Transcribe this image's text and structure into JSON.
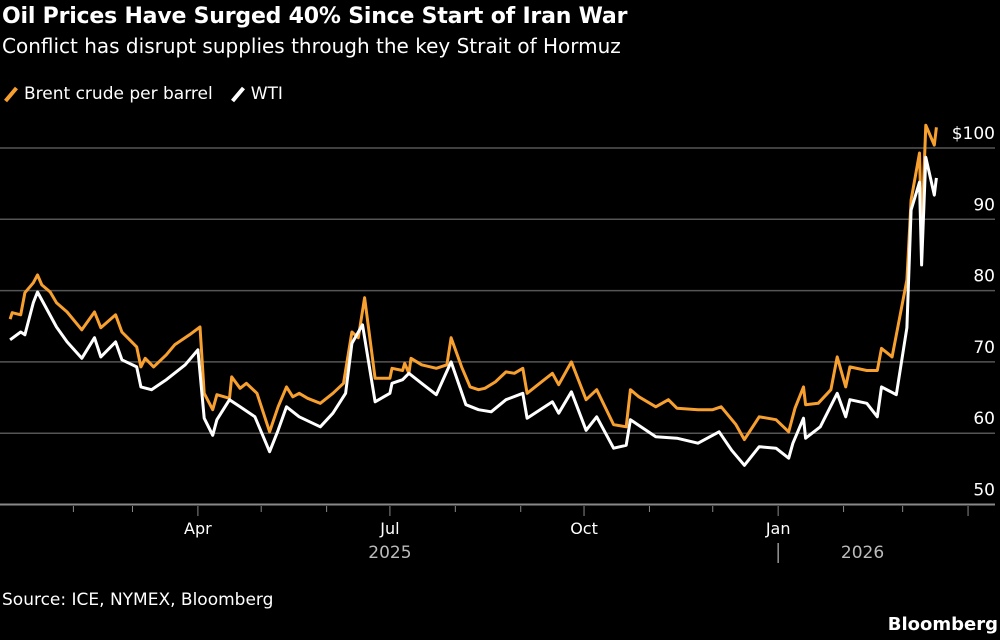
{
  "header": {
    "title": "Oil Prices Have Surged 40% Since Start of Iran War",
    "subtitle": "Conflict has disrupt supplies through the key Strait of Hormuz"
  },
  "footer": {
    "source": "Source: ICE, NYMEX, Bloomberg",
    "brand": "Bloomberg"
  },
  "chart_data": {
    "type": "line",
    "title": "Oil Prices Have Surged 40% Since Start of Iran War",
    "subtitle": "Conflict has disrupt supplies through the key Strait of Hormuz",
    "xlabel": "",
    "ylabel": "",
    "ylim": [
      50,
      104
    ],
    "xlim": [
      "2025-01-01",
      "2026-03-31"
    ],
    "grid": true,
    "legend": "top-left",
    "y_ticks": [
      {
        "value": 50,
        "label": "50"
      },
      {
        "value": 60,
        "label": "60"
      },
      {
        "value": 70,
        "label": "70"
      },
      {
        "value": 80,
        "label": "80"
      },
      {
        "value": 90,
        "label": "90"
      },
      {
        "value": 100,
        "label": "$100"
      }
    ],
    "x_ticks": [
      {
        "date": "2025-04-01",
        "label": "Apr"
      },
      {
        "date": "2025-07-01",
        "label": "Jul"
      },
      {
        "date": "2025-10-01",
        "label": "Oct"
      },
      {
        "date": "2026-01-01",
        "label": "Jan"
      }
    ],
    "year_labels": [
      {
        "date": "2025-07-01",
        "label": "2025"
      },
      {
        "date": "2026-02-10",
        "label": "2026"
      }
    ],
    "series": [
      {
        "name": "Brent crude per barrel",
        "color": "#f7a030",
        "points": [
          [
            "2025-01-02",
            76.0
          ],
          [
            "2025-01-03",
            76.9
          ],
          [
            "2025-01-07",
            76.6
          ],
          [
            "2025-01-09",
            79.7
          ],
          [
            "2025-01-13",
            81.1
          ],
          [
            "2025-01-15",
            82.2
          ],
          [
            "2025-01-17",
            80.8
          ],
          [
            "2025-01-21",
            79.8
          ],
          [
            "2025-01-24",
            78.3
          ],
          [
            "2025-01-29",
            77.0
          ],
          [
            "2025-02-05",
            74.5
          ],
          [
            "2025-02-11",
            77.0
          ],
          [
            "2025-02-14",
            74.8
          ],
          [
            "2025-02-21",
            76.6
          ],
          [
            "2025-02-24",
            74.2
          ],
          [
            "2025-03-03",
            72.1
          ],
          [
            "2025-03-05",
            69.3
          ],
          [
            "2025-03-07",
            70.5
          ],
          [
            "2025-03-11",
            69.3
          ],
          [
            "2025-03-17",
            71.0
          ],
          [
            "2025-03-21",
            72.4
          ],
          [
            "2025-03-28",
            73.8
          ],
          [
            "2025-04-02",
            74.9
          ],
          [
            "2025-04-04",
            65.6
          ],
          [
            "2025-04-08",
            63.3
          ],
          [
            "2025-04-10",
            65.4
          ],
          [
            "2025-04-16",
            64.9
          ],
          [
            "2025-04-17",
            67.9
          ],
          [
            "2025-04-21",
            66.3
          ],
          [
            "2025-04-24",
            67.0
          ],
          [
            "2025-04-29",
            65.6
          ],
          [
            "2025-05-05",
            60.2
          ],
          [
            "2025-05-09",
            63.7
          ],
          [
            "2025-05-13",
            66.5
          ],
          [
            "2025-05-16",
            65.1
          ],
          [
            "2025-05-19",
            65.6
          ],
          [
            "2025-05-23",
            64.9
          ],
          [
            "2025-05-29",
            64.2
          ],
          [
            "2025-06-04",
            65.6
          ],
          [
            "2025-06-09",
            67.0
          ],
          [
            "2025-06-13",
            74.2
          ],
          [
            "2025-06-16",
            73.4
          ],
          [
            "2025-06-19",
            79.0
          ],
          [
            "2025-06-24",
            67.7
          ],
          [
            "2025-07-01",
            67.7
          ],
          [
            "2025-07-02",
            69.1
          ],
          [
            "2025-07-07",
            68.8
          ],
          [
            "2025-07-08",
            69.8
          ],
          [
            "2025-07-10",
            68.4
          ],
          [
            "2025-07-11",
            70.5
          ],
          [
            "2025-07-16",
            69.6
          ],
          [
            "2025-07-23",
            69.1
          ],
          [
            "2025-07-28",
            69.6
          ],
          [
            "2025-07-30",
            73.4
          ],
          [
            "2025-08-04",
            69.3
          ],
          [
            "2025-08-08",
            66.5
          ],
          [
            "2025-08-12",
            66.1
          ],
          [
            "2025-08-15",
            66.3
          ],
          [
            "2025-08-20",
            67.2
          ],
          [
            "2025-08-25",
            68.6
          ],
          [
            "2025-08-29",
            68.4
          ],
          [
            "2025-09-02",
            69.1
          ],
          [
            "2025-09-04",
            65.6
          ],
          [
            "2025-09-10",
            67.0
          ],
          [
            "2025-09-16",
            68.4
          ],
          [
            "2025-09-19",
            66.8
          ],
          [
            "2025-09-25",
            70.0
          ],
          [
            "2025-10-02",
            64.7
          ],
          [
            "2025-10-07",
            66.1
          ],
          [
            "2025-10-15",
            61.2
          ],
          [
            "2025-10-21",
            60.9
          ],
          [
            "2025-10-23",
            66.1
          ],
          [
            "2025-10-27",
            65.1
          ],
          [
            "2025-11-04",
            63.7
          ],
          [
            "2025-11-10",
            64.7
          ],
          [
            "2025-11-14",
            63.5
          ],
          [
            "2025-11-24",
            63.3
          ],
          [
            "2025-12-01",
            63.3
          ],
          [
            "2025-12-05",
            63.7
          ],
          [
            "2025-12-12",
            61.2
          ],
          [
            "2025-12-16",
            59.1
          ],
          [
            "2025-12-23",
            62.3
          ],
          [
            "2025-12-31",
            61.9
          ],
          [
            "2026-01-06",
            60.2
          ],
          [
            "2026-01-09",
            63.5
          ],
          [
            "2026-01-13",
            66.5
          ],
          [
            "2026-01-14",
            64.0
          ],
          [
            "2026-01-20",
            64.2
          ],
          [
            "2026-01-26",
            66.1
          ],
          [
            "2026-01-29",
            70.7
          ],
          [
            "2026-02-02",
            66.5
          ],
          [
            "2026-02-04",
            69.3
          ],
          [
            "2026-02-12",
            68.8
          ],
          [
            "2026-02-17",
            68.8
          ],
          [
            "2026-02-19",
            71.9
          ],
          [
            "2026-02-24",
            70.7
          ],
          [
            "2026-03-03",
            81.5
          ],
          [
            "2026-03-05",
            92.7
          ],
          [
            "2026-03-09",
            99.3
          ],
          [
            "2026-03-10",
            87.8
          ],
          [
            "2026-03-12",
            103.2
          ],
          [
            "2026-03-16",
            100.4
          ],
          [
            "2026-03-17",
            102.9
          ]
        ]
      },
      {
        "name": "WTI",
        "color": "#ffffff",
        "points": [
          [
            "2025-01-02",
            73.1
          ],
          [
            "2025-01-07",
            74.2
          ],
          [
            "2025-01-09",
            73.8
          ],
          [
            "2025-01-13",
            78.3
          ],
          [
            "2025-01-15",
            79.8
          ],
          [
            "2025-01-24",
            74.9
          ],
          [
            "2025-01-29",
            72.8
          ],
          [
            "2025-02-05",
            70.5
          ],
          [
            "2025-02-11",
            73.4
          ],
          [
            "2025-02-14",
            70.7
          ],
          [
            "2025-02-21",
            72.8
          ],
          [
            "2025-02-24",
            70.3
          ],
          [
            "2025-03-03",
            69.3
          ],
          [
            "2025-03-05",
            66.5
          ],
          [
            "2025-03-10",
            66.1
          ],
          [
            "2025-03-17",
            67.5
          ],
          [
            "2025-03-26",
            69.6
          ],
          [
            "2025-04-01",
            71.7
          ],
          [
            "2025-04-04",
            62.1
          ],
          [
            "2025-04-08",
            59.7
          ],
          [
            "2025-04-10",
            61.9
          ],
          [
            "2025-04-16",
            64.7
          ],
          [
            "2025-04-21",
            63.7
          ],
          [
            "2025-04-28",
            62.3
          ],
          [
            "2025-05-05",
            57.4
          ],
          [
            "2025-05-09",
            60.4
          ],
          [
            "2025-05-13",
            63.7
          ],
          [
            "2025-05-19",
            62.3
          ],
          [
            "2025-05-29",
            60.9
          ],
          [
            "2025-06-04",
            62.8
          ],
          [
            "2025-06-10",
            65.6
          ],
          [
            "2025-06-13",
            72.6
          ],
          [
            "2025-06-18",
            75.2
          ],
          [
            "2025-06-24",
            64.4
          ],
          [
            "2025-07-01",
            65.6
          ],
          [
            "2025-07-02",
            67.0
          ],
          [
            "2025-07-07",
            67.5
          ],
          [
            "2025-07-10",
            68.4
          ],
          [
            "2025-07-16",
            67.0
          ],
          [
            "2025-07-23",
            65.4
          ],
          [
            "2025-07-30",
            70.0
          ],
          [
            "2025-08-06",
            64.0
          ],
          [
            "2025-08-12",
            63.3
          ],
          [
            "2025-08-18",
            63.0
          ],
          [
            "2025-08-25",
            64.7
          ],
          [
            "2025-09-02",
            65.6
          ],
          [
            "2025-09-04",
            62.1
          ],
          [
            "2025-09-16",
            64.4
          ],
          [
            "2025-09-19",
            62.8
          ],
          [
            "2025-09-25",
            65.8
          ],
          [
            "2025-10-02",
            60.4
          ],
          [
            "2025-10-07",
            62.3
          ],
          [
            "2025-10-15",
            57.9
          ],
          [
            "2025-10-21",
            58.3
          ],
          [
            "2025-10-23",
            61.9
          ],
          [
            "2025-11-04",
            59.5
          ],
          [
            "2025-11-14",
            59.3
          ],
          [
            "2025-11-24",
            58.6
          ],
          [
            "2025-12-04",
            60.2
          ],
          [
            "2025-12-10",
            57.6
          ],
          [
            "2025-12-16",
            55.5
          ],
          [
            "2025-12-23",
            58.1
          ],
          [
            "2025-12-31",
            57.9
          ],
          [
            "2026-01-06",
            56.5
          ],
          [
            "2026-01-08",
            58.6
          ],
          [
            "2026-01-13",
            62.1
          ],
          [
            "2026-01-14",
            59.3
          ],
          [
            "2026-01-21",
            60.9
          ],
          [
            "2026-01-29",
            65.6
          ],
          [
            "2026-02-02",
            62.3
          ],
          [
            "2026-02-04",
            64.7
          ],
          [
            "2026-02-12",
            64.2
          ],
          [
            "2026-02-17",
            62.3
          ],
          [
            "2026-02-19",
            66.5
          ],
          [
            "2026-02-26",
            65.4
          ],
          [
            "2026-03-03",
            74.8
          ],
          [
            "2026-03-05",
            91.3
          ],
          [
            "2026-03-09",
            95.2
          ],
          [
            "2026-03-10",
            83.6
          ],
          [
            "2026-03-12",
            98.7
          ],
          [
            "2026-03-16",
            93.4
          ],
          [
            "2026-03-17",
            95.8
          ]
        ]
      }
    ]
  }
}
